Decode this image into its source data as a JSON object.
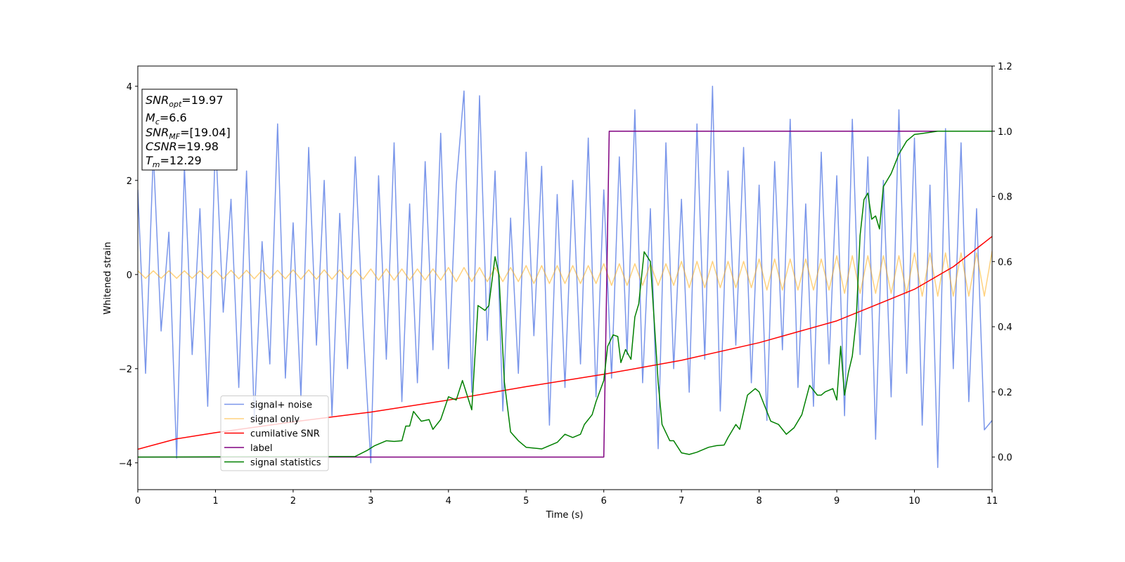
{
  "chart_data": {
    "type": "line",
    "xlabel": "Time (s)",
    "ylabel": "Whitened strain",
    "xlim": [
      0,
      11
    ],
    "ylim": [
      -4.57,
      4.43
    ],
    "y2lim": [
      -0.1,
      1.2
    ],
    "xticks": [
      0,
      1,
      2,
      3,
      4,
      5,
      6,
      7,
      8,
      9,
      10,
      11
    ],
    "yticks": [
      {
        "value": -4,
        "label": "−4"
      },
      {
        "value": -2,
        "label": "−2"
      },
      0,
      2,
      4
    ],
    "y2ticks": [
      {
        "value": 0,
        "label": "0.0"
      },
      0.2,
      0.4,
      0.6,
      0.8,
      {
        "value": 1,
        "label": "1.0"
      },
      1.2
    ],
    "legend_loc": "lower left",
    "x": [
      0,
      0.1,
      0.2,
      0.3,
      0.4,
      0.5,
      0.6,
      0.7,
      0.8,
      0.9,
      1,
      1.1,
      1.2,
      1.3,
      1.4,
      1.5,
      1.6,
      1.7,
      1.8,
      1.9,
      2,
      2.1,
      2.2,
      2.3,
      2.4,
      2.5,
      2.6,
      2.7,
      2.8,
      2.9,
      3,
      3.1,
      3.2,
      3.3,
      3.4,
      3.5,
      3.6,
      3.7,
      3.8,
      3.9,
      4,
      4.1,
      4.2,
      4.3,
      4.4,
      4.5,
      4.6,
      4.7,
      4.8,
      4.9,
      5,
      5.1,
      5.2,
      5.3,
      5.4,
      5.5,
      5.6,
      5.7,
      5.8,
      5.9,
      6,
      6.1,
      6.2,
      6.3,
      6.4,
      6.5,
      6.6,
      6.7,
      6.8,
      6.9,
      7,
      7.1,
      7.2,
      7.3,
      7.4,
      7.5,
      7.6,
      7.7,
      7.8,
      7.9,
      8,
      8.1,
      8.2,
      8.3,
      8.4,
      8.5,
      8.6,
      8.7,
      8.8,
      8.9,
      9,
      9.1,
      9.2,
      9.3,
      9.4,
      9.5,
      9.6,
      9.7,
      9.8,
      9.9,
      10,
      10.1,
      10.2,
      10.3,
      10.4,
      10.5,
      10.6,
      10.7,
      10.8,
      10.9,
      11
    ],
    "series": [
      {
        "name": "signal+ noise",
        "color": "#4169e1",
        "alpha": 0.7,
        "values": [
          1.8,
          -2.1,
          2.6,
          -1.2,
          0.9,
          -3.9,
          2.3,
          -1.7,
          1.4,
          -2.8,
          2.9,
          -0.8,
          1.6,
          -2.4,
          2.2,
          -3.1,
          0.7,
          -1.9,
          3.2,
          -2.2,
          1.1,
          -2.6,
          2.7,
          -1.5,
          2.0,
          -3.0,
          1.3,
          -2.0,
          2.5,
          -1.1,
          -4.0,
          2.1,
          -1.8,
          2.8,
          -2.7,
          1.5,
          -2.3,
          2.4,
          -1.6,
          3.0,
          -2.0,
          1.9,
          3.9,
          -2.5,
          3.8,
          -1.4,
          2.2,
          -2.9,
          1.2,
          -2.1,
          2.6,
          -1.3,
          2.3,
          -3.2,
          1.7,
          -2.4,
          2.0,
          -1.9,
          2.9,
          -2.6,
          1.8,
          -2.2,
          2.5,
          -1.7,
          3.5,
          -2.3,
          1.4,
          -3.7,
          2.8,
          -2.0,
          1.6,
          -2.5,
          3.2,
          -1.8,
          4.0,
          -2.9,
          2.2,
          -1.5,
          2.7,
          -2.3,
          1.9,
          -3.1,
          2.4,
          -1.6,
          3.3,
          -2.4,
          1.5,
          -2.8,
          2.6,
          -1.9,
          2.1,
          -3.0,
          3.3,
          -1.7,
          2.5,
          -3.5,
          2.0,
          -2.6,
          3.5,
          -2.1,
          2.9,
          -3.2,
          1.9,
          -4.1,
          3.1,
          -2.0,
          2.8,
          -2.7,
          1.4,
          -3.3,
          -3.1
        ]
      },
      {
        "name": "signal only",
        "color": "#ffa500",
        "alpha": 0.5,
        "values": [
          0.08,
          -0.08,
          0.08,
          -0.08,
          0.08,
          -0.08,
          0.08,
          -0.08,
          0.08,
          -0.08,
          0.09,
          -0.09,
          0.09,
          -0.09,
          0.09,
          -0.09,
          0.09,
          -0.09,
          0.09,
          -0.09,
          0.1,
          -0.1,
          0.1,
          -0.1,
          0.1,
          -0.1,
          0.1,
          -0.1,
          0.1,
          -0.1,
          0.12,
          -0.12,
          0.12,
          -0.12,
          0.12,
          -0.12,
          0.12,
          -0.12,
          0.12,
          -0.12,
          0.15,
          -0.15,
          0.15,
          -0.15,
          0.15,
          -0.15,
          0.15,
          -0.15,
          0.15,
          -0.15,
          0.19,
          -0.19,
          0.19,
          -0.19,
          0.19,
          -0.19,
          0.19,
          -0.19,
          0.19,
          -0.19,
          0.23,
          -0.23,
          0.23,
          -0.23,
          0.23,
          -0.23,
          0.23,
          -0.23,
          0.23,
          -0.23,
          0.28,
          -0.28,
          0.28,
          -0.28,
          0.28,
          -0.28,
          0.28,
          -0.28,
          0.28,
          -0.28,
          0.33,
          -0.33,
          0.33,
          -0.33,
          0.33,
          -0.33,
          0.33,
          -0.33,
          0.33,
          -0.33,
          0.4,
          -0.4,
          0.4,
          -0.4,
          0.4,
          -0.4,
          0.4,
          -0.4,
          0.4,
          -0.4,
          0.46,
          -0.46,
          0.46,
          -0.46,
          0.46,
          -0.46,
          0.46,
          -0.46,
          0.46,
          -0.46,
          0.5
        ]
      },
      {
        "name": "cumilative SNR",
        "color": "#ff0000",
        "axis": "y2",
        "x": [
          0,
          0.5,
          1,
          2,
          3,
          4,
          5,
          6,
          7,
          8,
          9,
          10,
          10.5,
          11
        ],
        "values": [
          0.024,
          0.056,
          0.075,
          0.108,
          0.138,
          0.175,
          0.216,
          0.254,
          0.297,
          0.351,
          0.418,
          0.515,
          0.584,
          0.677
        ]
      },
      {
        "name": "label",
        "color": "#800080",
        "axis": "y2",
        "x": [
          0,
          6.0,
          6.07,
          11
        ],
        "values": [
          0,
          0,
          1,
          1
        ]
      },
      {
        "name": "signal statistics",
        "color": "#008000",
        "axis": "y2",
        "x": [
          0,
          2.8,
          2.95,
          3.05,
          3.2,
          3.3,
          3.4,
          3.45,
          3.5,
          3.55,
          3.65,
          3.75,
          3.8,
          3.9,
          4.0,
          4.1,
          4.18,
          4.3,
          4.38,
          4.47,
          4.52,
          4.6,
          4.65,
          4.72,
          4.8,
          4.9,
          5.0,
          5.2,
          5.4,
          5.5,
          5.6,
          5.7,
          5.75,
          5.85,
          5.9,
          6.0,
          6.05,
          6.12,
          6.18,
          6.22,
          6.28,
          6.35,
          6.4,
          6.45,
          6.52,
          6.6,
          6.7,
          6.75,
          6.85,
          6.9,
          7.0,
          7.1,
          7.2,
          7.25,
          7.35,
          7.45,
          7.55,
          7.6,
          7.7,
          7.75,
          7.85,
          7.95,
          8.0,
          8.15,
          8.25,
          8.35,
          8.45,
          8.55,
          8.65,
          8.75,
          8.8,
          8.85,
          8.95,
          9.0,
          9.05,
          9.1,
          9.15,
          9.2,
          9.25,
          9.3,
          9.35,
          9.4,
          9.45,
          9.5,
          9.55,
          9.6,
          9.7,
          9.8,
          9.9,
          10.0,
          10.1,
          10.3,
          11
        ],
        "values": [
          0,
          0.002,
          0.02,
          0.035,
          0.05,
          0.048,
          0.05,
          0.095,
          0.095,
          0.14,
          0.11,
          0.115,
          0.085,
          0.115,
          0.185,
          0.175,
          0.235,
          0.145,
          0.465,
          0.45,
          0.465,
          0.615,
          0.56,
          0.23,
          0.077,
          0.05,
          0.03,
          0.025,
          0.045,
          0.07,
          0.06,
          0.07,
          0.1,
          0.13,
          0.17,
          0.235,
          0.34,
          0.375,
          0.37,
          0.29,
          0.33,
          0.3,
          0.43,
          0.47,
          0.63,
          0.6,
          0.23,
          0.1,
          0.05,
          0.05,
          0.013,
          0.008,
          0.015,
          0.02,
          0.03,
          0.035,
          0.037,
          0.06,
          0.1,
          0.085,
          0.19,
          0.21,
          0.2,
          0.11,
          0.1,
          0.07,
          0.09,
          0.13,
          0.22,
          0.19,
          0.19,
          0.2,
          0.21,
          0.175,
          0.34,
          0.19,
          0.26,
          0.31,
          0.42,
          0.68,
          0.79,
          0.81,
          0.73,
          0.74,
          0.7,
          0.83,
          0.87,
          0.93,
          0.97,
          0.99,
          0.993,
          1.0,
          1.0
        ]
      }
    ],
    "annotations": [
      {
        "name": "SNR",
        "sub": "opt",
        "text": "=19.97"
      },
      {
        "name": "M",
        "sub": "c",
        "text": "=6.6"
      },
      {
        "name": "SNR",
        "sub": "MF",
        "text": "=[19.04]"
      },
      {
        "name": "CSNR",
        "text": "=19.98"
      },
      {
        "name": "T",
        "sub": "m",
        "text": "=12.29"
      }
    ]
  }
}
